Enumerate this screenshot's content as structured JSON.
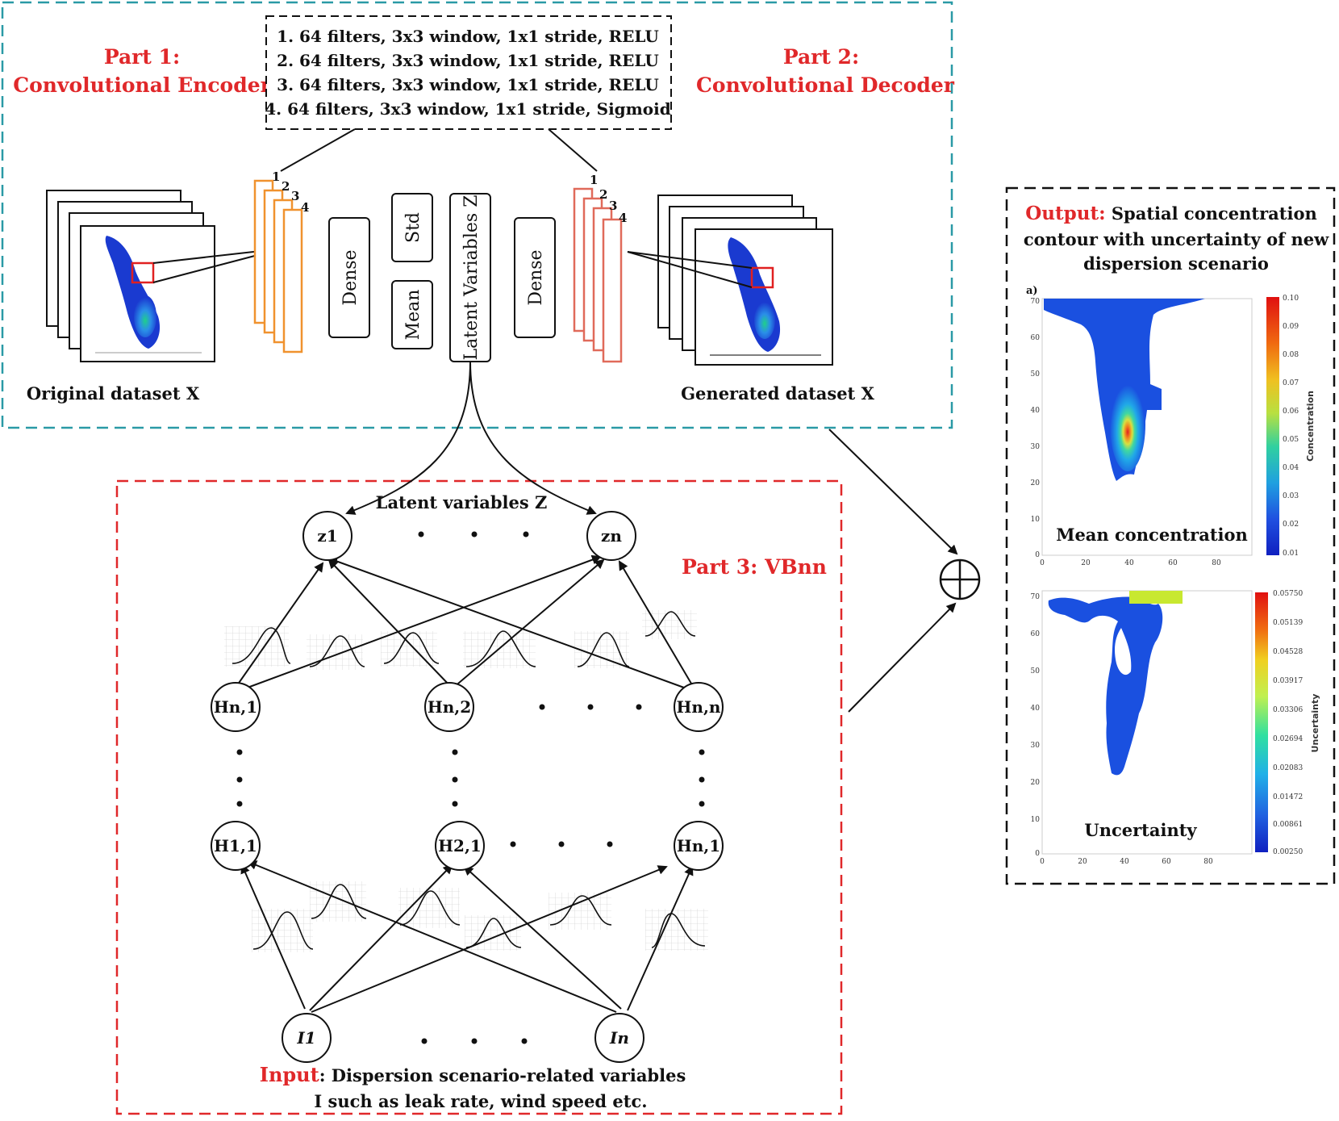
{
  "part1": {
    "title_line1": "Part 1:",
    "title_line2": "Convolutional Encoder"
  },
  "part2": {
    "title_line1": "Part 2:",
    "title_line2": "Convolutional Decoder"
  },
  "part3": {
    "title": "Part 3: VBnn"
  },
  "conv_layers": [
    "1. 64 filters, 3x3 window, 1x1 stride, RELU",
    "2. 64 filters, 3x3 window, 1x1 stride, RELU",
    "3. 64 filters, 3x3 window, 1x1 stride, RELU",
    "4. 64 filters, 3x3 window, 1x1 stride, Sigmoid"
  ],
  "layer_numbers": [
    "1",
    "2",
    "3",
    "4"
  ],
  "blocks": {
    "dense": "Dense",
    "std": "Std",
    "mean": "Mean",
    "latent": "Latent Variables Z"
  },
  "captions": {
    "original": "Original dataset X",
    "generated": "Generated dataset X"
  },
  "latent_label": "Latent variables Z",
  "nodes": {
    "z1": "z1",
    "zn": "zn",
    "hn1": "Hn,1",
    "hn2": "Hn,2",
    "hnn": "Hn,n",
    "h11": "H1,1",
    "h21": "H2,1",
    "hn1b": "Hn,1",
    "i1": "I1",
    "in": "In"
  },
  "input": {
    "label": "Input",
    "line1": ": Dispersion scenario-related variables",
    "line2": "I such as leak rate, wind speed etc."
  },
  "output": {
    "label": "Output:",
    "line1": " Spatial concentration",
    "line2": "contour with uncertainty of new",
    "line3": "dispersion scenario"
  },
  "plot_mean": {
    "panel_label": "a)",
    "caption": "Mean concentration",
    "colorbar_label": "Concentration",
    "yticks": [
      "70",
      "60",
      "50",
      "40",
      "30",
      "20",
      "10",
      "0"
    ],
    "xticks": [
      "0",
      "20",
      "40",
      "60",
      "80"
    ],
    "cbar_ticks": [
      "0.10",
      "0.09",
      "0.08",
      "0.07",
      "0.06",
      "0.05",
      "0.04",
      "0.03",
      "0.02",
      "0.01"
    ]
  },
  "plot_unc": {
    "caption": "Uncertainty",
    "colorbar_label": "Uncertainty",
    "yticks": [
      "70",
      "60",
      "50",
      "40",
      "30",
      "20",
      "10",
      "0"
    ],
    "xticks": [
      "0",
      "20",
      "40",
      "60",
      "80"
    ],
    "cbar_ticks": [
      "0.05750",
      "0.05139",
      "0.04528",
      "0.03917",
      "0.03306",
      "0.02694",
      "0.02083",
      "0.01472",
      "0.00861",
      "0.00250"
    ]
  },
  "colors": {
    "red": "#e0282a",
    "teal": "#2a9aa6",
    "orange": "#f0922e",
    "salmon": "#e06a5a",
    "dark": "#111111"
  },
  "icons": {
    "combine": "circle-plus-icon"
  }
}
